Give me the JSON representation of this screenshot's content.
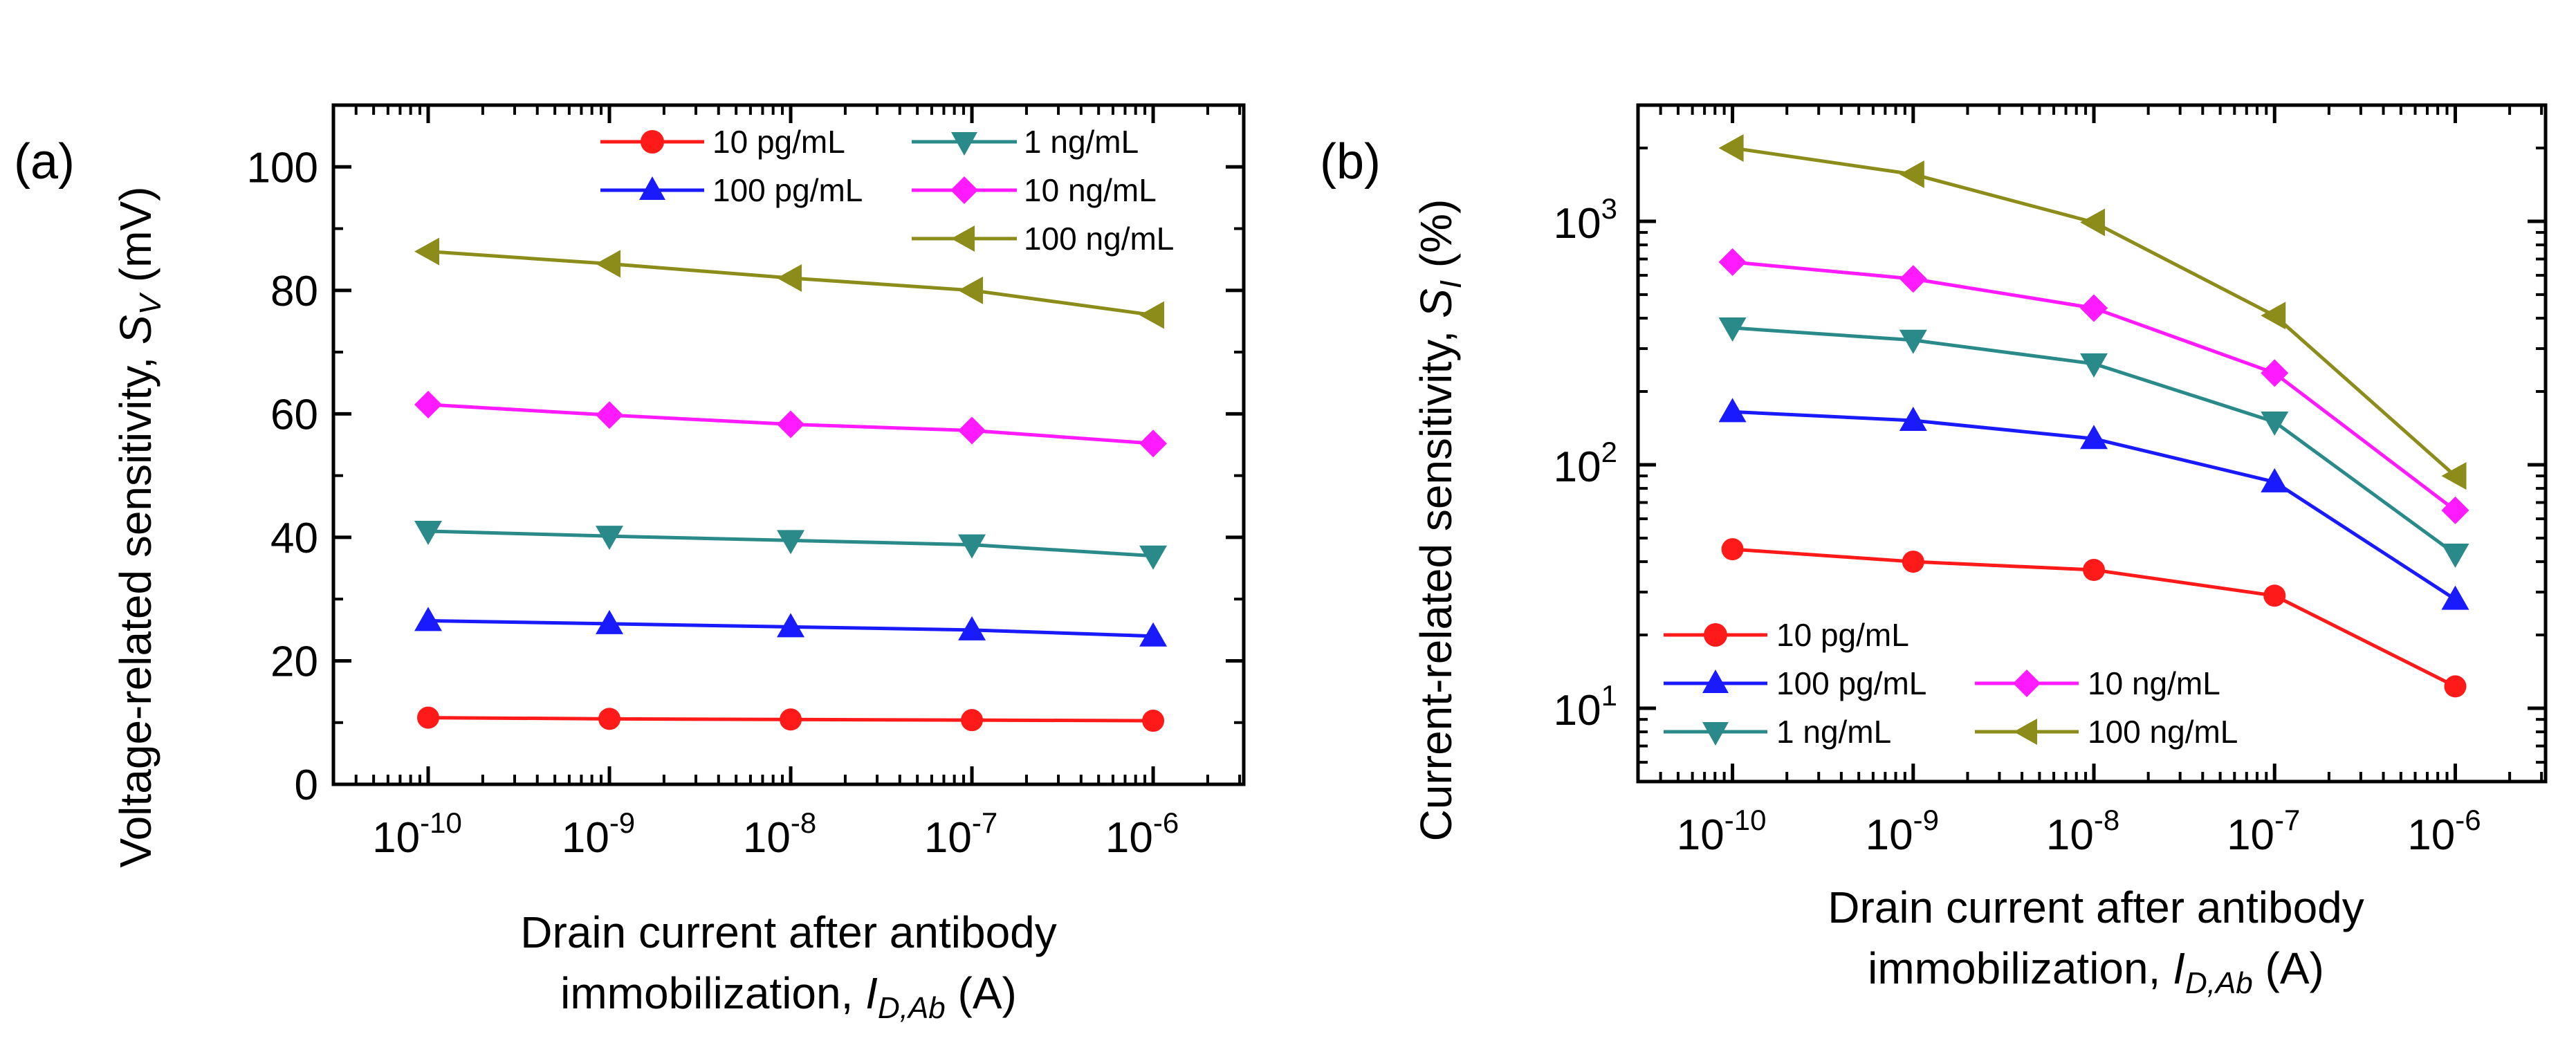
{
  "chart_data": [
    {
      "panel": "(a)",
      "type": "line",
      "x": [
        "1e-10",
        "1e-9",
        "1e-8",
        "1e-7",
        "1e-6"
      ],
      "x_tick_labels": [
        "10",
        "10",
        "10",
        "10",
        "10"
      ],
      "x_tick_exponents": [
        "-10",
        "-9",
        "-8",
        "-7",
        "-6"
      ],
      "xscale": "log",
      "xlim": [
        3e-11,
        3.16e-06
      ],
      "xlabel_line1": "Drain current after antibody",
      "xlabel_line2_prefix": "immobilization, ",
      "xlabel_var": "I",
      "xlabel_sub": "D,Ab",
      "xlabel_suffix": " (A)",
      "ylabel_prefix": "Voltage-related sensitivity, ",
      "ylabel_var": "S",
      "ylabel_sub": "V",
      "ylabel_suffix": " (mV)",
      "yscale": "linear",
      "ylim": [
        0,
        110
      ],
      "y_ticks": [
        0,
        20,
        40,
        60,
        80,
        100
      ],
      "y_tick_labels": [
        "0",
        "20",
        "40",
        "60",
        "80",
        "100"
      ],
      "legend_position": "top",
      "series": [
        {
          "name": "10 pg/mL",
          "color": "#ff1a1a",
          "marker": "circle",
          "values": [
            10.8,
            10.6,
            10.5,
            10.4,
            10.3
          ]
        },
        {
          "name": "100 pg/mL",
          "color": "#1a1aff",
          "marker": "triangle-up",
          "values": [
            26.5,
            26.0,
            25.5,
            25.0,
            24.0
          ]
        },
        {
          "name": "1 ng/mL",
          "color": "#2a8a8a",
          "marker": "triangle-down",
          "values": [
            41.0,
            40.2,
            39.5,
            38.8,
            37.0
          ]
        },
        {
          "name": "10 ng/mL",
          "color": "#ff1aff",
          "marker": "diamond",
          "values": [
            61.5,
            59.8,
            58.3,
            57.3,
            55.2
          ]
        },
        {
          "name": "100 ng/mL",
          "color": "#8c8c1a",
          "marker": "triangle-left",
          "values": [
            86.3,
            84.3,
            82.0,
            80.0,
            76.0
          ]
        }
      ]
    },
    {
      "panel": "(b)",
      "type": "line",
      "x": [
        "1e-10",
        "1e-9",
        "1e-8",
        "1e-7",
        "1e-6"
      ],
      "x_tick_labels": [
        "10",
        "10",
        "10",
        "10",
        "10"
      ],
      "x_tick_exponents": [
        "-10",
        "-9",
        "-8",
        "-7",
        "-6"
      ],
      "xscale": "log",
      "xlim": [
        3e-11,
        3.16e-06
      ],
      "xlabel_line1": "Drain current after antibody",
      "xlabel_line2_prefix": "immobilization, ",
      "xlabel_var": "I",
      "xlabel_sub": "D,Ab",
      "xlabel_suffix": " (A)",
      "ylabel_prefix": "Current-related sensitivity, ",
      "ylabel_var": "S",
      "ylabel_sub": "I",
      "ylabel_suffix": " (%)",
      "yscale": "log",
      "ylim": [
        5,
        3000
      ],
      "y_ticks": [
        10,
        100,
        1000
      ],
      "y_tick_labels": [
        "10",
        "10",
        "10"
      ],
      "y_tick_exponents": [
        "1",
        "2",
        "3"
      ],
      "legend_position": "bottom-left",
      "series": [
        {
          "name": "10 pg/mL",
          "color": "#ff1a1a",
          "marker": "circle",
          "values": [
            45,
            40,
            37,
            29,
            12.3
          ]
        },
        {
          "name": "100 pg/mL",
          "color": "#1a1aff",
          "marker": "triangle-up",
          "values": [
            165,
            152,
            128,
            85,
            28
          ]
        },
        {
          "name": "1 ng/mL",
          "color": "#2a8a8a",
          "marker": "triangle-down",
          "values": [
            365,
            325,
            260,
            150,
            43
          ]
        },
        {
          "name": "10 ng/mL",
          "color": "#ff1aff",
          "marker": "diamond",
          "values": [
            680,
            580,
            440,
            238,
            65
          ]
        },
        {
          "name": "100 ng/mL",
          "color": "#8c8c1a",
          "marker": "triangle-left",
          "values": [
            2000,
            1560,
            990,
            410,
            90
          ]
        }
      ]
    }
  ]
}
